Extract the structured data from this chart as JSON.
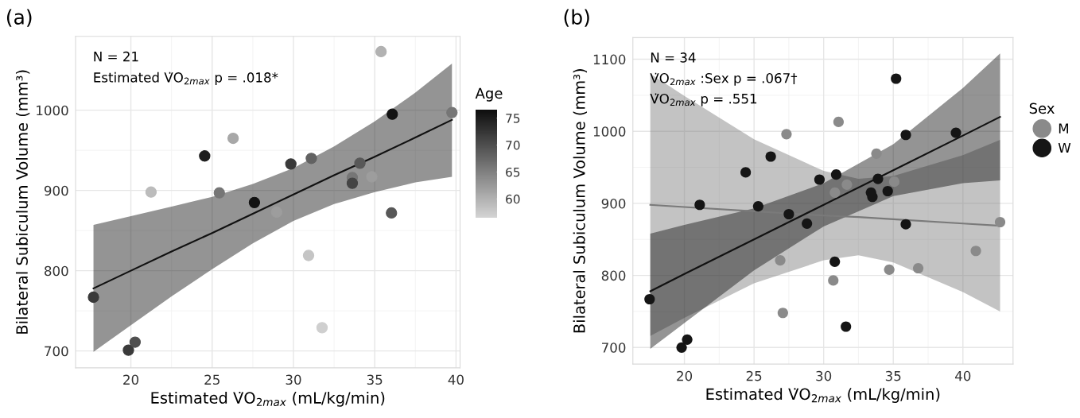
{
  "chart_data": [
    {
      "type": "scatter",
      "title": "(a)",
      "xlabel": "Estimated V̇O$_{2max}$ (mL/kg/min)",
      "ylabel": "Bilateral Subiculum Volume (mm³)",
      "clabel": "Age",
      "annotations": [
        "N = 21",
        "Estimated V̇O$_{2max}$ p = .018*"
      ],
      "xlim": [
        16.6,
        40.25
      ],
      "xticks": [
        20,
        25,
        30,
        35,
        40
      ],
      "ylim": [
        679,
        1092
      ],
      "yticks": [
        700,
        800,
        900,
        1000
      ],
      "clim": [
        56.5,
        76.6
      ],
      "cticks": [
        60,
        65,
        70,
        75
      ],
      "grid": true,
      "marker": "circle",
      "series": [
        {
          "colors": [
            "#3a3a3a",
            "#3a3a3a",
            "#4e4e4e",
            "#bbbbbb",
            "#1d1d1d",
            "#767676",
            "#a7a7a7",
            "#131313",
            "#9d9d9d",
            "#3a3a3a",
            "#626262",
            "#c5c5c5",
            "#cfcfcf",
            "#767676",
            "#444444",
            "#585858",
            "#9d9d9d",
            "#b1b1b1",
            "#131313",
            "#585858",
            "#767676"
          ],
          "x": [
            17.7,
            19.85,
            20.26,
            21.24,
            24.54,
            25.44,
            26.29,
            27.6,
            28.97,
            29.84,
            31.1,
            30.93,
            31.76,
            33.62,
            33.62,
            34.09,
            34.82,
            35.39,
            36.08,
            36.03,
            39.75
          ],
          "values": [
            767,
            701,
            711,
            898,
            943,
            897,
            965,
            885,
            873,
            933,
            940,
            819,
            729,
            916,
            909,
            934,
            917,
            1073,
            995,
            872,
            997
          ],
          "cvalues": [
            72,
            72,
            70,
            59,
            75,
            66,
            61,
            76,
            62,
            72,
            68,
            58,
            57,
            66,
            71,
            69,
            62,
            60,
            76,
            69,
            66
          ]
        },
        {
          "type": "line",
          "color": "#111111",
          "marker": "none",
          "x": [
            17.7,
            20,
            22.5,
            25,
            27.5,
            30,
            32.5,
            35,
            37.5,
            39.75
          ],
          "values": [
            778,
            800,
            824,
            847,
            871,
            895,
            919,
            942,
            966,
            988
          ],
          "lower": [
            699,
            732,
            768,
            802,
            834,
            862,
            883,
            898,
            910,
            917
          ],
          "upper": [
            857,
            868,
            880,
            892,
            908,
            928,
            955,
            986,
            1022,
            1058
          ]
        }
      ]
    },
    {
      "type": "scatter",
      "title": "(b)",
      "xlabel": "Estimated V̇O$_{2max}$ (mL/kg/min)",
      "ylabel": "Bilateral Subiculum Volume (mm³)",
      "legend_title": "Sex",
      "annotations": [
        "N = 34",
        "V̇O$_{2max}$ :Sex p = .067†",
        "V̇O$_{2max}$ p = .551"
      ],
      "xlim": [
        16.3,
        43.6
      ],
      "xticks": [
        20,
        25,
        30,
        35,
        40
      ],
      "ylim": [
        677,
        1130
      ],
      "yticks": [
        700,
        800,
        900,
        1000,
        1100
      ],
      "grid": true,
      "legend": "right",
      "marker": "circle",
      "series": [
        {
          "type": "line",
          "color": "#7a7a7a",
          "marker": "none",
          "x": [
            17.55,
            20,
            25,
            30,
            32.5,
            35,
            40,
            42.67
          ],
          "values": [
            898,
            895,
            889,
            883,
            881,
            878,
            872,
            869
          ],
          "lower": [
            716,
            741,
            789,
            821,
            828,
            818,
            777,
            750
          ],
          "upper": [
            1080,
            1049,
            989,
            945,
            934,
            938,
            967,
            988
          ]
        },
        {
          "type": "line",
          "color": "#111111",
          "marker": "none",
          "x": [
            17.55,
            20,
            25,
            30,
            35,
            40,
            42.67
          ],
          "values": [
            778,
            802,
            850,
            898,
            946,
            994,
            1020
          ],
          "lower": [
            698,
            734,
            807,
            868,
            910,
            928,
            932
          ],
          "upper": [
            858,
            870,
            893,
            928,
            982,
            1060,
            1108
          ]
        },
        {
          "name": "M",
          "color": "#8a8a8a",
          "x": [
            27.33,
            31.07,
            33.79,
            35.07,
            31.67,
            30.81,
            26.88,
            30.69,
            34.71,
            36.79,
            27.07,
            40.93,
            42.67
          ],
          "values": [
            996,
            1013,
            969,
            930,
            926,
            915,
            821,
            793,
            808,
            810,
            748,
            834,
            874
          ]
        },
        {
          "name": "W",
          "color": "#151515",
          "x": [
            17.5,
            19.8,
            20.2,
            21.1,
            24.4,
            25.3,
            26.2,
            27.5,
            28.8,
            29.7,
            30.9,
            30.8,
            31.6,
            33.4,
            33.5,
            33.9,
            34.6,
            35.2,
            35.9,
            35.9,
            39.5
          ],
          "values": [
            767,
            700,
            711,
            898,
            943,
            896,
            965,
            885,
            872,
            933,
            940,
            819,
            729,
            915,
            909,
            934,
            917,
            1073,
            995,
            871,
            998
          ]
        }
      ]
    }
  ]
}
